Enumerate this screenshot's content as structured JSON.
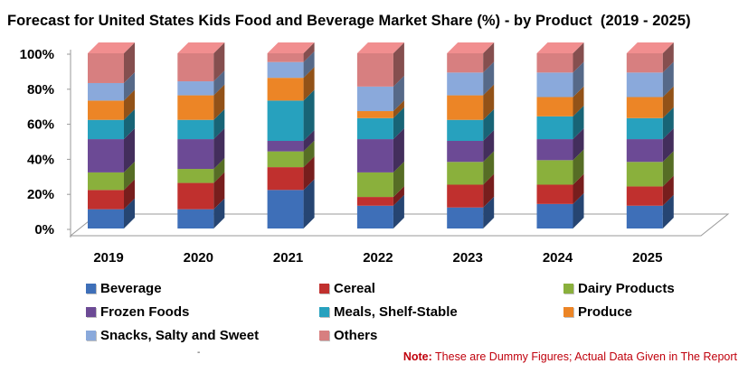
{
  "title": "Forecast for United States Kids Food and Beverage Market Share (%) - by Product  (2019 - 2025)",
  "footnote": {
    "label": "Note:",
    "text": "These are Dummy Figures; Actual Data Given in The Report"
  },
  "stray_mark": "-",
  "chart_data": {
    "type": "bar",
    "stacked": true,
    "style": "3d-stacked-column",
    "title": "Forecast for United States Kids Food and Beverage Market Share (%) - by Product  (2019 - 2025)",
    "categories": [
      "2019",
      "2020",
      "2021",
      "2022",
      "2023",
      "2024",
      "2025"
    ],
    "y_ticks": [
      "0%",
      "20%",
      "40%",
      "60%",
      "80%",
      "100%"
    ],
    "ylim": [
      0,
      100
    ],
    "y_unit": "%",
    "grid": false,
    "legend_position": "bottom",
    "series": [
      {
        "name": "Beverage",
        "color": "#3e6fb8",
        "values": [
          11,
          11,
          22,
          13,
          12,
          14,
          13
        ]
      },
      {
        "name": "Cereal",
        "color": "#c0302e",
        "values": [
          11,
          15,
          13,
          5,
          13,
          11,
          11
        ]
      },
      {
        "name": "Dairy Products",
        "color": "#8ab03c",
        "values": [
          10,
          8,
          9,
          14,
          13,
          14,
          14
        ]
      },
      {
        "name": "Frozen Foods",
        "color": "#6c4a95",
        "values": [
          19,
          17,
          6,
          19,
          12,
          12,
          13
        ]
      },
      {
        "name": "Meals, Shelf-Stable",
        "color": "#27a1be",
        "values": [
          11,
          11,
          23,
          12,
          12,
          13,
          12
        ]
      },
      {
        "name": "Produce",
        "color": "#ec8526",
        "values": [
          11,
          14,
          13,
          4,
          14,
          11,
          12
        ]
      },
      {
        "name": "Snacks, Salty and Sweet",
        "color": "#8aa9db",
        "values": [
          10,
          8,
          9,
          14,
          13,
          14,
          14
        ]
      },
      {
        "name": "Others",
        "color": "#d77f80",
        "values": [
          17,
          16,
          5,
          19,
          11,
          11,
          11
        ]
      }
    ]
  }
}
